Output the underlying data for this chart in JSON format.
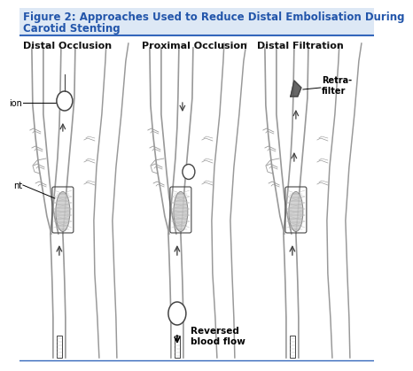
{
  "title_line1": "Figure 2: Approaches Used to Reduce Distal Embolisation During",
  "title_line2": "Carotid Stenting",
  "title_color": "#2255aa",
  "title_fontsize": 8.5,
  "background_color": "#ffffff",
  "header_bg": "#dde8f5",
  "separator_color": "#3366bb",
  "panel_labels": [
    "Distal Occlusion",
    "Proximal Occlusion",
    "Distal Filtration"
  ],
  "label_fontsize": 8,
  "label_color": "#111111",
  "ann_ion": "ion",
  "ann_nt": "nt",
  "ann_reversed": "Reversed\nblood flow",
  "ann_retra": "Retra-\nfilter",
  "ann_fontsize": 7,
  "vessel_color": "#999999",
  "vessel_lw": 1.2,
  "light_gray": "#bbbbbb",
  "dark_gray": "#444444",
  "mid_gray": "#777777",
  "shading_color": "#cccccc"
}
